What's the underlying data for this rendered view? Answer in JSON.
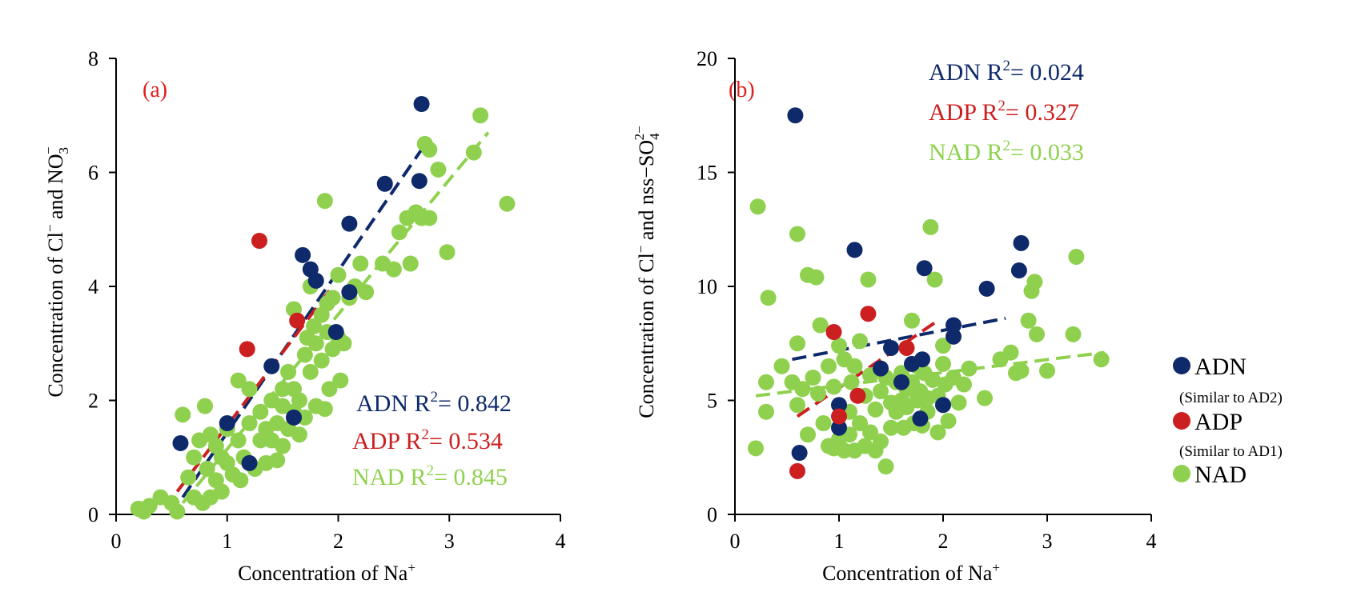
{
  "colors": {
    "ADN": "#0e2a6b",
    "ADP": "#cc1f1f",
    "NAD": "#8fd14f",
    "panel_tag": "#e01f1f"
  },
  "chart_data": [
    {
      "type": "scatter",
      "panel": "(a)",
      "xlabel": "Concentration of Na",
      "xlabel_sup": "+",
      "ylabel": "Concentration of Cl",
      "ylabel_sup1": "−",
      "ylabel_mid": " and NO",
      "ylabel_sub": "3",
      "ylabel_sup2": "−",
      "xlim": [
        0,
        4
      ],
      "ylim": [
        0,
        8
      ],
      "xticks": [
        "0",
        "1",
        "2",
        "3",
        "4"
      ],
      "yticks": [
        "0",
        "2",
        "4",
        "6",
        "8"
      ],
      "series": [
        {
          "name": "ADN",
          "r2_label": "ADN R",
          "r2_value": "= 0.842",
          "sup": "2",
          "fit": [
            [
              0.6,
              0.3
            ],
            [
              2.75,
              6.4
            ]
          ],
          "points": [
            [
              0.58,
              1.25
            ],
            [
              1.0,
              1.6
            ],
            [
              1.2,
              0.9
            ],
            [
              1.4,
              2.6
            ],
            [
              1.6,
              1.7
            ],
            [
              1.68,
              4.55
            ],
            [
              1.75,
              4.3
            ],
            [
              1.8,
              4.1
            ],
            [
              1.98,
              3.2
            ],
            [
              2.1,
              5.1
            ],
            [
              2.1,
              3.9
            ],
            [
              2.42,
              5.8
            ],
            [
              2.73,
              5.85
            ],
            [
              2.75,
              7.2
            ]
          ]
        },
        {
          "name": "ADP",
          "r2_label": "ADP R",
          "r2_value": "= 0.534",
          "sup": "2",
          "fit": [
            [
              0.55,
              0.4
            ],
            [
              1.95,
              4.0
            ]
          ],
          "points": [
            [
              1.18,
              2.9
            ],
            [
              1.29,
              4.8
            ],
            [
              1.63,
              3.4
            ]
          ]
        },
        {
          "name": "NAD",
          "r2_label": "NAD R",
          "r2_value": "= 0.845",
          "sup": "2",
          "fit": [
            [
              0.6,
              0.2
            ],
            [
              3.35,
              6.7
            ]
          ],
          "points": [
            [
              0.2,
              0.1
            ],
            [
              0.25,
              0.05
            ],
            [
              0.3,
              0.15
            ],
            [
              0.4,
              0.3
            ],
            [
              0.5,
              0.2
            ],
            [
              0.55,
              0.05
            ],
            [
              0.6,
              1.75
            ],
            [
              0.65,
              0.65
            ],
            [
              0.7,
              1.0
            ],
            [
              0.7,
              0.3
            ],
            [
              0.75,
              1.3
            ],
            [
              0.78,
              0.2
            ],
            [
              0.8,
              1.9
            ],
            [
              0.82,
              0.8
            ],
            [
              0.85,
              1.4
            ],
            [
              0.85,
              0.3
            ],
            [
              0.9,
              1.2
            ],
            [
              0.9,
              0.6
            ],
            [
              0.95,
              1.0
            ],
            [
              0.95,
              0.4
            ],
            [
              1.0,
              1.5
            ],
            [
              1.0,
              0.9
            ],
            [
              1.05,
              0.7
            ],
            [
              1.1,
              1.3
            ],
            [
              1.1,
              2.35
            ],
            [
              1.12,
              0.6
            ],
            [
              1.15,
              1.0
            ],
            [
              1.2,
              1.6
            ],
            [
              1.2,
              2.2
            ],
            [
              1.25,
              0.8
            ],
            [
              1.3,
              1.3
            ],
            [
              1.3,
              1.8
            ],
            [
              1.35,
              1.5
            ],
            [
              1.35,
              0.9
            ],
            [
              1.4,
              2.0
            ],
            [
              1.4,
              1.3
            ],
            [
              1.45,
              1.6
            ],
            [
              1.45,
              0.95
            ],
            [
              1.5,
              1.9
            ],
            [
              1.5,
              2.2
            ],
            [
              1.5,
              1.2
            ],
            [
              1.55,
              1.5
            ],
            [
              1.55,
              2.5
            ],
            [
              1.6,
              1.8
            ],
            [
              1.6,
              2.2
            ],
            [
              1.6,
              3.6
            ],
            [
              1.65,
              2.0
            ],
            [
              1.65,
              1.4
            ],
            [
              1.7,
              2.8
            ],
            [
              1.7,
              1.7
            ],
            [
              1.72,
              3.1
            ],
            [
              1.75,
              2.5
            ],
            [
              1.75,
              4.0
            ],
            [
              1.78,
              3.3
            ],
            [
              1.8,
              1.9
            ],
            [
              1.8,
              3.0
            ],
            [
              1.85,
              2.7
            ],
            [
              1.85,
              3.5
            ],
            [
              1.88,
              1.85
            ],
            [
              1.88,
              5.5
            ],
            [
              1.9,
              3.2
            ],
            [
              1.9,
              3.7
            ],
            [
              1.92,
              2.2
            ],
            [
              1.95,
              2.9
            ],
            [
              1.95,
              3.8
            ],
            [
              2.0,
              3.1
            ],
            [
              2.0,
              4.2
            ],
            [
              2.02,
              2.35
            ],
            [
              2.05,
              3.0
            ],
            [
              2.1,
              3.8
            ],
            [
              2.15,
              4.0
            ],
            [
              2.2,
              4.4
            ],
            [
              2.25,
              3.9
            ],
            [
              2.4,
              4.4
            ],
            [
              2.5,
              4.3
            ],
            [
              2.55,
              4.95
            ],
            [
              2.62,
              5.2
            ],
            [
              2.65,
              4.4
            ],
            [
              2.7,
              5.3
            ],
            [
              2.75,
              5.2
            ],
            [
              2.78,
              6.5
            ],
            [
              2.82,
              6.4
            ],
            [
              2.82,
              5.2
            ],
            [
              2.9,
              6.05
            ],
            [
              2.98,
              4.6
            ],
            [
              3.22,
              6.35
            ],
            [
              3.28,
              7.0
            ],
            [
              3.52,
              5.45
            ]
          ]
        }
      ]
    },
    {
      "type": "scatter",
      "panel": "(b)",
      "xlabel": "Concentration of Na",
      "xlabel_sup": "+",
      "ylabel": "Concentration of Cl",
      "ylabel_sup1": "−",
      "ylabel_mid": " and nss−SO",
      "ylabel_sub": "4",
      "ylabel_sup2": "2−",
      "xlim": [
        0,
        4
      ],
      "ylim": [
        0,
        20
      ],
      "xticks": [
        "0",
        "1",
        "2",
        "3",
        "4"
      ],
      "yticks": [
        "0",
        "5",
        "10",
        "15",
        "20"
      ],
      "series": [
        {
          "name": "ADN",
          "r2_label": "ADN R",
          "r2_value": "= 0.024",
          "sup": "2",
          "fit": [
            [
              0.55,
              6.8
            ],
            [
              2.6,
              8.6
            ]
          ],
          "points": [
            [
              0.58,
              17.5
            ],
            [
              0.62,
              2.7
            ],
            [
              1.0,
              4.8
            ],
            [
              1.0,
              3.8
            ],
            [
              1.15,
              11.6
            ],
            [
              1.4,
              6.4
            ],
            [
              1.5,
              7.3
            ],
            [
              1.6,
              5.8
            ],
            [
              1.7,
              6.6
            ],
            [
              1.78,
              4.2
            ],
            [
              1.8,
              6.8
            ],
            [
              1.82,
              10.8
            ],
            [
              2.0,
              4.8
            ],
            [
              2.1,
              8.3
            ],
            [
              2.1,
              7.8
            ],
            [
              2.42,
              9.9
            ],
            [
              2.73,
              10.7
            ],
            [
              2.75,
              11.9
            ]
          ]
        },
        {
          "name": "ADP",
          "r2_label": "ADP R",
          "r2_value": "= 0.327",
          "sup": "2",
          "fit": [
            [
              0.6,
              4.3
            ],
            [
              1.95,
              8.5
            ]
          ],
          "points": [
            [
              0.6,
              1.9
            ],
            [
              0.95,
              8.0
            ],
            [
              1.0,
              4.3
            ],
            [
              1.18,
              5.2
            ],
            [
              1.28,
              8.8
            ],
            [
              1.65,
              7.3
            ]
          ]
        },
        {
          "name": "NAD",
          "r2_label": "NAD R",
          "r2_value": "= 0.033",
          "sup": "2",
          "fit": [
            [
              0.2,
              5.2
            ],
            [
              3.55,
              7.1
            ]
          ],
          "points": [
            [
              0.2,
              2.9
            ],
            [
              0.22,
              13.5
            ],
            [
              0.3,
              4.5
            ],
            [
              0.3,
              5.8
            ],
            [
              0.32,
              9.5
            ],
            [
              0.45,
              6.5
            ],
            [
              0.55,
              5.8
            ],
            [
              0.6,
              12.3
            ],
            [
              0.6,
              7.5
            ],
            [
              0.6,
              4.8
            ],
            [
              0.65,
              5.5
            ],
            [
              0.7,
              10.5
            ],
            [
              0.7,
              3.5
            ],
            [
              0.75,
              6.0
            ],
            [
              0.78,
              10.4
            ],
            [
              0.8,
              5.3
            ],
            [
              0.82,
              8.3
            ],
            [
              0.85,
              4.0
            ],
            [
              0.9,
              6.5
            ],
            [
              0.9,
              3.0
            ],
            [
              0.95,
              5.6
            ],
            [
              0.95,
              2.9
            ],
            [
              1.0,
              7.4
            ],
            [
              1.0,
              3.3
            ],
            [
              1.05,
              6.8
            ],
            [
              1.05,
              2.8
            ],
            [
              1.1,
              4.5
            ],
            [
              1.1,
              3.5
            ],
            [
              1.12,
              5.8
            ],
            [
              1.15,
              6.5
            ],
            [
              1.15,
              2.8
            ],
            [
              1.2,
              7.6
            ],
            [
              1.2,
              4.0
            ],
            [
              1.25,
              5.2
            ],
            [
              1.25,
              3.0
            ],
            [
              1.28,
              10.3
            ],
            [
              1.3,
              6.1
            ],
            [
              1.3,
              3.6
            ],
            [
              1.35,
              4.6
            ],
            [
              1.35,
              2.8
            ],
            [
              1.4,
              5.4
            ],
            [
              1.4,
              3.2
            ],
            [
              1.45,
              6.0
            ],
            [
              1.45,
              2.1
            ],
            [
              1.5,
              4.9
            ],
            [
              1.5,
              3.8
            ],
            [
              1.55,
              5.8
            ],
            [
              1.55,
              4.5
            ],
            [
              1.6,
              5.0
            ],
            [
              1.6,
              6.2
            ],
            [
              1.62,
              3.8
            ],
            [
              1.65,
              5.5
            ],
            [
              1.65,
              4.7
            ],
            [
              1.7,
              8.5
            ],
            [
              1.7,
              5.8
            ],
            [
              1.72,
              4.0
            ],
            [
              1.75,
              6.5
            ],
            [
              1.75,
              5.0
            ],
            [
              1.78,
              5.4
            ],
            [
              1.8,
              3.9
            ],
            [
              1.82,
              6.2
            ],
            [
              1.85,
              5.1
            ],
            [
              1.85,
              4.5
            ],
            [
              1.88,
              12.6
            ],
            [
              1.9,
              5.9
            ],
            [
              1.92,
              10.3
            ],
            [
              1.95,
              5.2
            ],
            [
              1.95,
              3.6
            ],
            [
              2.0,
              7.4
            ],
            [
              2.0,
              6.6
            ],
            [
              2.02,
              5.7
            ],
            [
              2.05,
              4.1
            ],
            [
              2.1,
              6.0
            ],
            [
              2.15,
              4.9
            ],
            [
              2.2,
              5.7
            ],
            [
              2.25,
              6.4
            ],
            [
              2.4,
              5.1
            ],
            [
              2.55,
              6.8
            ],
            [
              2.65,
              7.1
            ],
            [
              2.7,
              6.2
            ],
            [
              2.75,
              6.3
            ],
            [
              2.82,
              8.5
            ],
            [
              2.85,
              9.8
            ],
            [
              2.88,
              10.2
            ],
            [
              2.9,
              7.9
            ],
            [
              3.0,
              6.3
            ],
            [
              3.25,
              7.9
            ],
            [
              3.28,
              11.3
            ],
            [
              3.52,
              6.8
            ]
          ]
        }
      ]
    }
  ],
  "legend": [
    {
      "name": "ADN",
      "note": "(Similar to AD2)"
    },
    {
      "name": "ADP",
      "note": "(Similar to AD1)"
    },
    {
      "name": "NAD",
      "note": ""
    }
  ]
}
